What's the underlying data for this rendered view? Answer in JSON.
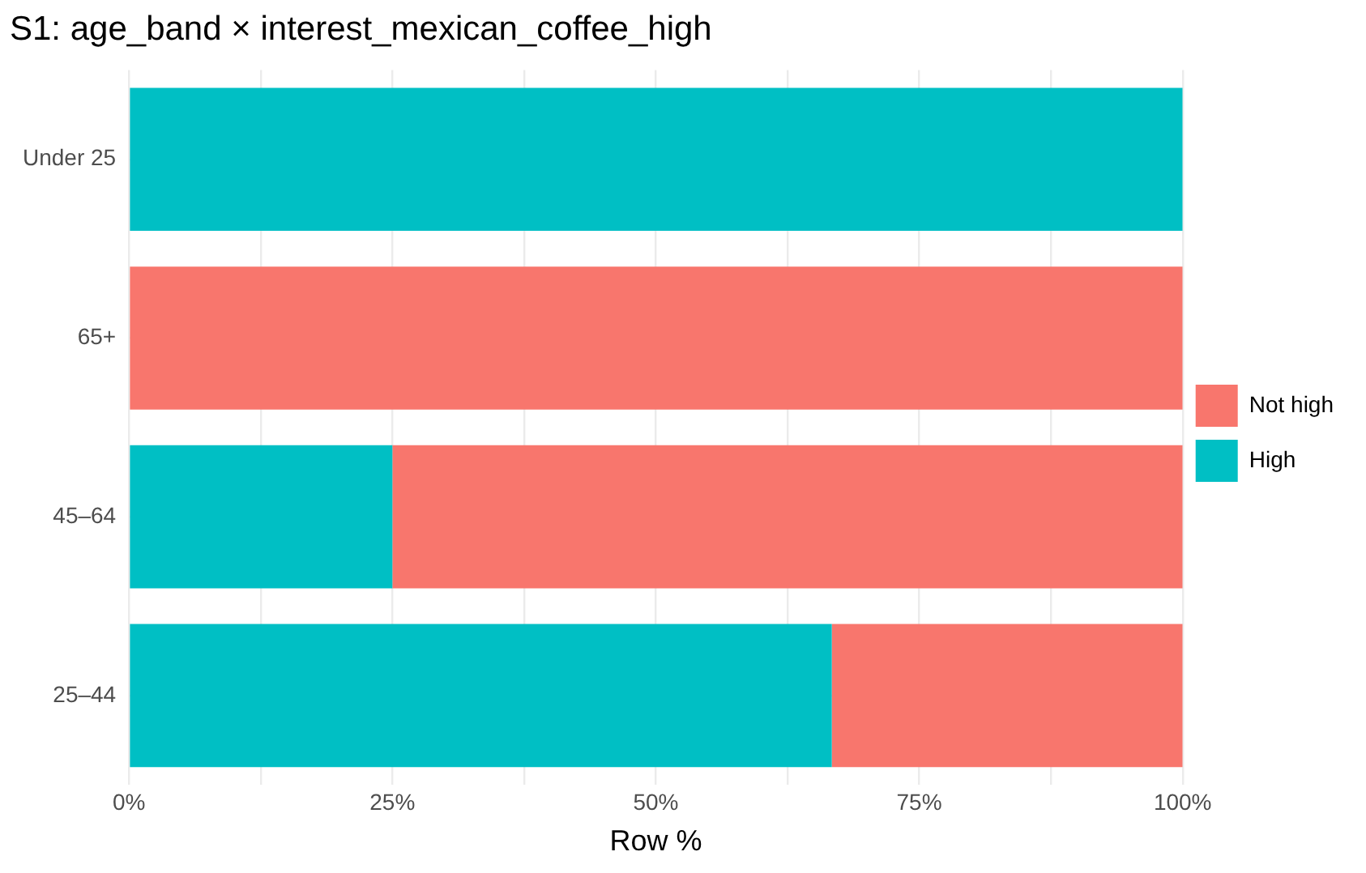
{
  "chart_data": {
    "type": "bar",
    "orientation": "horizontal",
    "stacked": true,
    "title": "S1: age_band × interest_mexican_coffee_high",
    "xlabel": "Row %",
    "categories": [
      "Under 25",
      "65+",
      "45–64",
      "25–44"
    ],
    "series": [
      {
        "name": "High",
        "color": "#00bfc4",
        "values": [
          100,
          0,
          25,
          66.7
        ]
      },
      {
        "name": "Not high",
        "color": "#f8766d",
        "values": [
          0,
          100,
          75,
          33.3
        ]
      }
    ],
    "xlim": [
      0,
      100
    ],
    "xticks": [
      {
        "value": 0,
        "label": "0%"
      },
      {
        "value": 12.5,
        "label": null
      },
      {
        "value": 25,
        "label": "25%"
      },
      {
        "value": 37.5,
        "label": null
      },
      {
        "value": 50,
        "label": "50%"
      },
      {
        "value": 62.5,
        "label": null
      },
      {
        "value": 75,
        "label": "75%"
      },
      {
        "value": 87.5,
        "label": null
      },
      {
        "value": 100,
        "label": "100%"
      }
    ],
    "grid": true,
    "legend": "right"
  }
}
